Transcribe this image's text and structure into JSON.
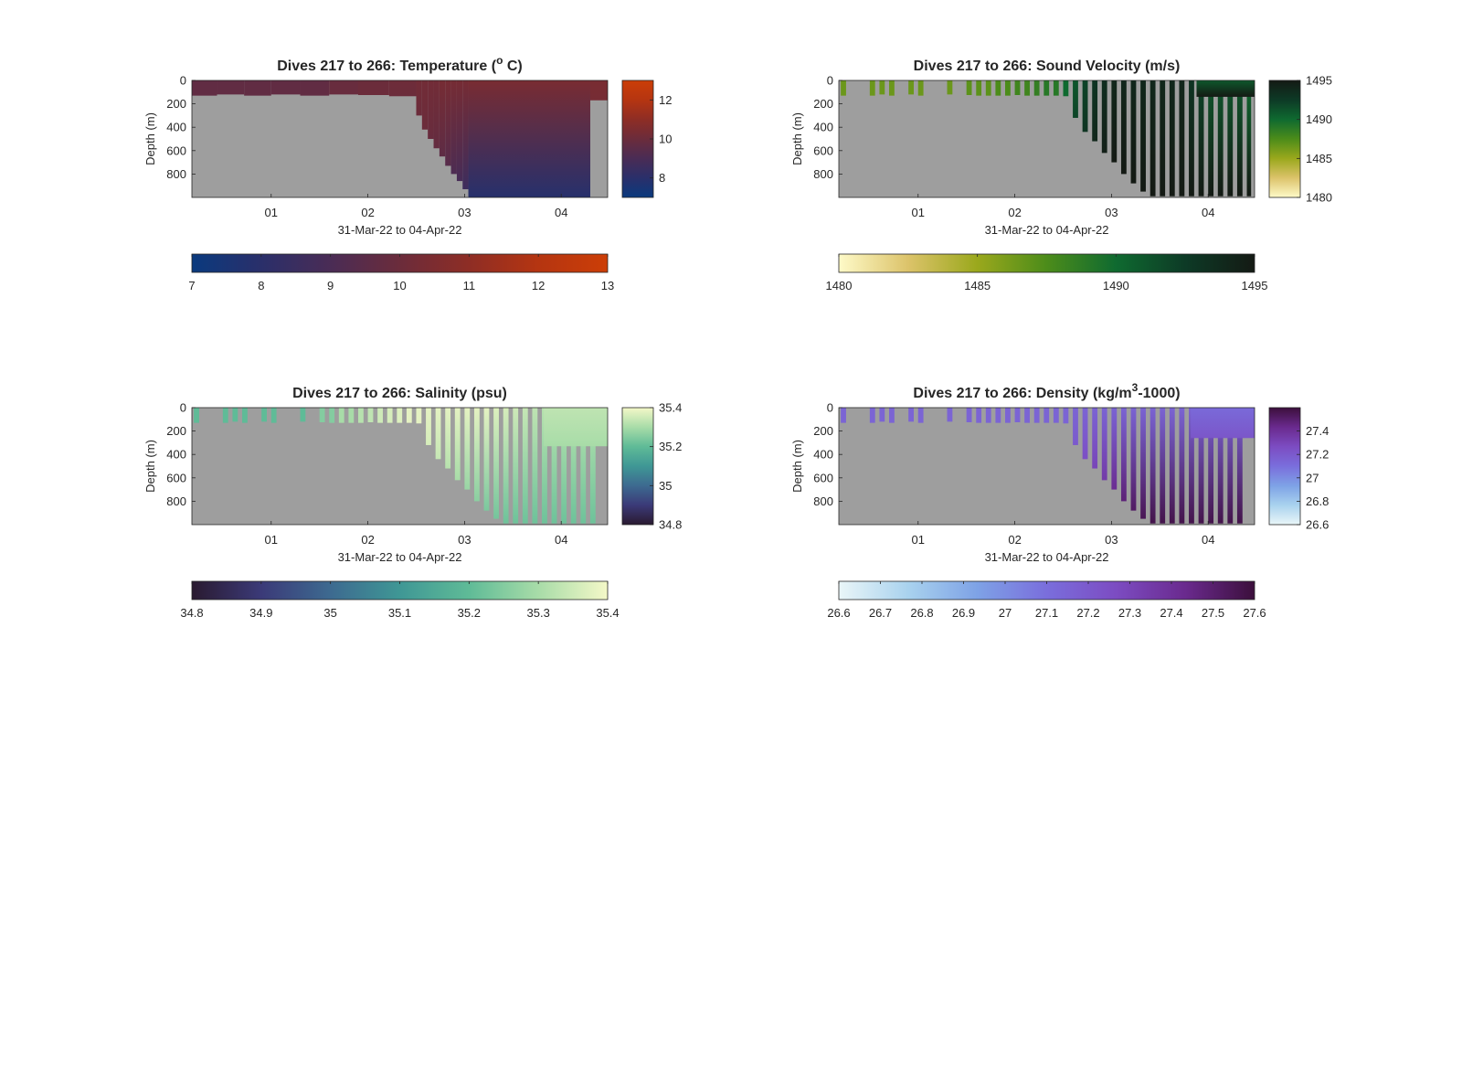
{
  "chart_data": [
    {
      "type": "heatmap",
      "title": "Dives 217 to 266: Temperature (",
      "title_sup": "o",
      "title_end": " C)",
      "xlabel": "31-Mar-22 to 04-Apr-22",
      "ylabel": "Depth (m)",
      "xticks": [
        "01",
        "02",
        "03",
        "04"
      ],
      "xtick_days": [
        1,
        2,
        3,
        4
      ],
      "xlim_days": [
        0.18,
        4.48
      ],
      "yticks": [
        "0",
        "200",
        "400",
        "600",
        "800"
      ],
      "ylim": [
        0,
        1000
      ],
      "ydir": "reverse",
      "bg_color": "#9e9e9e",
      "colormap": [
        "#0a3a7e",
        "#2a2f6a",
        "#4a2c55",
        "#6b2c3b",
        "#8e2d25",
        "#b53511",
        "#cc3e07"
      ],
      "clim": [
        7,
        13
      ],
      "cbar_right_ticks": [
        "8",
        "10",
        "12"
      ],
      "cbar_right_values": [
        8,
        10,
        12
      ],
      "cbar_bottom_ticks": [
        "7",
        "8",
        "9",
        "10",
        "11",
        "12",
        "13"
      ],
      "cbar_bottom_values": [
        7,
        8,
        9,
        10,
        11,
        12,
        13
      ],
      "dives": {
        "start_day": [
          0.18,
          0.44,
          0.72,
          1.0,
          1.3,
          1.6,
          1.9,
          2.22,
          2.5,
          2.56,
          2.62,
          2.68,
          2.74,
          2.8,
          2.86,
          2.92,
          2.98,
          3.04,
          4.3
        ],
        "max_depth": [
          130,
          120,
          130,
          120,
          130,
          120,
          125,
          135,
          300,
          420,
          500,
          580,
          650,
          730,
          800,
          860,
          930,
          990,
          170
        ],
        "surface_value": [
          9.7,
          9.7,
          9.7,
          9.7,
          9.7,
          9.9,
          10.0,
          10.1,
          10.2,
          10.2,
          10.2,
          10.2,
          10.3,
          10.3,
          10.3,
          10.3,
          10.3,
          10.3,
          10.4
        ],
        "deep_value": [
          9.7,
          9.7,
          9.7,
          9.7,
          9.7,
          9.9,
          10.0,
          10.0,
          10.0,
          10.0,
          9.9,
          9.8,
          9.6,
          9.4,
          9.1,
          8.9,
          8.6,
          8.3,
          10.3
        ]
      },
      "continuous_from_day": 3.04,
      "continuous_to_day": 4.3,
      "continuous_surface_value": 10.4,
      "continuous_deep_value": 7.9
    },
    {
      "type": "heatmap",
      "title": "Dives 217 to 266: Sound Velocity (m/s)",
      "title_sup": "",
      "title_end": "",
      "xlabel": "31-Mar-22 to 04-Apr-22",
      "ylabel": "Depth (m)",
      "xticks": [
        "01",
        "02",
        "03",
        "04"
      ],
      "xtick_days": [
        1,
        2,
        3,
        4
      ],
      "xlim_days": [
        0.18,
        4.48
      ],
      "yticks": [
        "0",
        "200",
        "400",
        "600",
        "800"
      ],
      "ylim": [
        0,
        1000
      ],
      "ydir": "reverse",
      "bg_color": "#9e9e9e",
      "colormap": [
        "#fefac8",
        "#dcc36a",
        "#9aa81c",
        "#4c8c1a",
        "#0f6a30",
        "#0d3a26",
        "#141a14"
      ],
      "clim": [
        1480,
        1495
      ],
      "cbar_right_ticks": [
        "1480",
        "1485",
        "1490",
        "1495"
      ],
      "cbar_right_values": [
        1480,
        1485,
        1490,
        1495
      ],
      "cbar_bottom_ticks": [
        "1480",
        "1485",
        "1490",
        "1495"
      ],
      "cbar_bottom_values": [
        1480,
        1485,
        1490,
        1495
      ],
      "dives": {
        "start_day": [
          0.2,
          0.3,
          0.4,
          0.5,
          0.6,
          0.7,
          0.8,
          0.9,
          1.0,
          1.1,
          1.2,
          1.3,
          1.4,
          1.5,
          1.6,
          1.7,
          1.8,
          1.9,
          2.0,
          2.1,
          2.2,
          2.3,
          2.4,
          2.5,
          2.6,
          2.7,
          2.8,
          2.9,
          3.0,
          3.1,
          3.2,
          3.3,
          3.4,
          3.5,
          3.6,
          3.7,
          3.8,
          3.9,
          4.0,
          4.1,
          4.2,
          4.3,
          4.4
        ],
        "max_depth": [
          130,
          0,
          0,
          130,
          120,
          130,
          0,
          120,
          130,
          0,
          0,
          120,
          0,
          125,
          130,
          130,
          130,
          130,
          125,
          130,
          130,
          130,
          130,
          135,
          320,
          440,
          520,
          620,
          700,
          800,
          880,
          950,
          990,
          990,
          990,
          990,
          990,
          990,
          990,
          990,
          990,
          990,
          990
        ],
        "surface_value": [
          1486.5,
          1486.5,
          1486.5,
          1486.5,
          1486.5,
          1486.5,
          1486.5,
          1486.5,
          1486.5,
          1486.5,
          1486.5,
          1486.5,
          1486.5,
          1487,
          1487,
          1487,
          1487.5,
          1487.5,
          1488,
          1488,
          1488.5,
          1489,
          1489,
          1490,
          1491,
          1492,
          1493,
          1493.5,
          1494,
          1494,
          1494,
          1494,
          1494,
          1494,
          1494,
          1494,
          1493,
          1492,
          1491,
          1491,
          1491,
          1491,
          1490
        ],
        "deep_value": [
          1486.5,
          1486.5,
          1486.5,
          1486.5,
          1486.5,
          1486.5,
          1486.5,
          1486.5,
          1486.5,
          1486.5,
          1486.5,
          1486.5,
          1486.5,
          1487,
          1487,
          1487,
          1487.5,
          1487.5,
          1488,
          1488,
          1488.5,
          1489,
          1489,
          1490,
          1492,
          1493,
          1494,
          1494.5,
          1495,
          1495,
          1495,
          1495,
          1495,
          1495,
          1495,
          1495,
          1495,
          1495,
          1495,
          1495,
          1495,
          1495,
          1495
        ]
      },
      "continuous_from_day": 3.88,
      "continuous_to_day": 4.48,
      "continuous_surface_value": 1491,
      "continuous_deep_value": 1495,
      "continuous_max_depth": 140
    },
    {
      "type": "heatmap",
      "title": "Dives 217 to 266: Salinity (psu)",
      "title_sup": "",
      "title_end": "",
      "xlabel": "31-Mar-22 to 04-Apr-22",
      "ylabel": "Depth (m)",
      "xticks": [
        "01",
        "02",
        "03",
        "04"
      ],
      "xtick_days": [
        1,
        2,
        3,
        4
      ],
      "xlim_days": [
        0.18,
        4.48
      ],
      "yticks": [
        "0",
        "200",
        "400",
        "600",
        "800"
      ],
      "ylim": [
        0,
        1000
      ],
      "ydir": "reverse",
      "bg_color": "#9e9e9e",
      "colormap": [
        "#2a1a30",
        "#3b3a78",
        "#3d6a90",
        "#3f9795",
        "#5fbb97",
        "#a8dca8",
        "#f4f8c8"
      ],
      "clim": [
        34.8,
        35.4
      ],
      "cbar_right_ticks": [
        "34.8",
        "35",
        "35.2",
        "35.4"
      ],
      "cbar_right_values": [
        34.8,
        35.0,
        35.2,
        35.4
      ],
      "cbar_bottom_ticks": [
        "34.8",
        "34.9",
        "35",
        "35.1",
        "35.2",
        "35.3",
        "35.4"
      ],
      "cbar_bottom_values": [
        34.8,
        34.9,
        35.0,
        35.1,
        35.2,
        35.3,
        35.4
      ],
      "dives": {
        "start_day": [
          0.2,
          0.3,
          0.4,
          0.5,
          0.6,
          0.7,
          0.8,
          0.9,
          1.0,
          1.1,
          1.2,
          1.3,
          1.4,
          1.5,
          1.6,
          1.7,
          1.8,
          1.9,
          2.0,
          2.1,
          2.2,
          2.3,
          2.4,
          2.5,
          2.6,
          2.7,
          2.8,
          2.9,
          3.0,
          3.1,
          3.2,
          3.3,
          3.4,
          3.5,
          3.6,
          3.7,
          3.8,
          3.9,
          4.0,
          4.1,
          4.2,
          4.3,
          4.4
        ],
        "max_depth": [
          130,
          0,
          0,
          130,
          120,
          130,
          0,
          120,
          130,
          0,
          0,
          120,
          0,
          125,
          130,
          130,
          130,
          130,
          125,
          130,
          130,
          130,
          130,
          135,
          320,
          440,
          520,
          620,
          700,
          800,
          880,
          950,
          990,
          990,
          990,
          990,
          990,
          990,
          990,
          990,
          990,
          990,
          140
        ],
        "surface_value": [
          35.2,
          35.2,
          35.2,
          35.2,
          35.2,
          35.2,
          35.2,
          35.2,
          35.2,
          35.2,
          35.2,
          35.2,
          35.2,
          35.25,
          35.25,
          35.3,
          35.3,
          35.32,
          35.33,
          35.35,
          35.36,
          35.37,
          35.38,
          35.38,
          35.38,
          35.38,
          35.38,
          35.38,
          35.38,
          35.38,
          35.38,
          35.37,
          35.36,
          35.35,
          35.34,
          35.33,
          35.32,
          35.32,
          35.32,
          35.32,
          35.32,
          35.32,
          35.32
        ],
        "deep_value": [
          35.2,
          35.2,
          35.2,
          35.2,
          35.2,
          35.2,
          35.2,
          35.2,
          35.2,
          35.2,
          35.2,
          35.2,
          35.2,
          35.25,
          35.25,
          35.3,
          35.3,
          35.32,
          35.33,
          35.35,
          35.36,
          35.37,
          35.38,
          35.38,
          35.36,
          35.34,
          35.32,
          35.3,
          35.28,
          35.26,
          35.24,
          35.23,
          35.22,
          35.22,
          35.22,
          35.22,
          35.22,
          35.22,
          35.22,
          35.22,
          35.22,
          35.22,
          35.3
        ]
      },
      "continuous_from_day": 3.82,
      "continuous_to_day": 4.48,
      "continuous_surface_value": 35.33,
      "continuous_deep_value": 35.3,
      "continuous_max_depth": 330
    },
    {
      "type": "heatmap",
      "title": "Dives 217 to 266: Density (kg/m",
      "title_sup": "3",
      "title_end": "-1000)",
      "xlabel": "31-Mar-22 to 04-Apr-22",
      "ylabel": "Depth (m)",
      "xticks": [
        "01",
        "02",
        "03",
        "04"
      ],
      "xtick_days": [
        1,
        2,
        3,
        4
      ],
      "xlim_days": [
        0.18,
        4.48
      ],
      "yticks": [
        "0",
        "200",
        "400",
        "600",
        "800"
      ],
      "ylim": [
        0,
        1000
      ],
      "ydir": "reverse",
      "bg_color": "#9e9e9e",
      "colormap": [
        "#eaf6f8",
        "#a9d2ee",
        "#7ea2e6",
        "#7a6edc",
        "#7c4cc2",
        "#6a2a8e",
        "#3c0f3c"
      ],
      "clim": [
        26.6,
        27.6
      ],
      "cbar_right_ticks": [
        "26.6",
        "26.8",
        "27",
        "27.2",
        "27.4"
      ],
      "cbar_right_values": [
        26.6,
        26.8,
        27.0,
        27.2,
        27.4
      ],
      "cbar_bottom_ticks": [
        "26.6",
        "26.7",
        "26.8",
        "26.9",
        "27",
        "27.1",
        "27.2",
        "27.3",
        "27.4",
        "27.5",
        "27.6"
      ],
      "cbar_bottom_values": [
        26.6,
        26.7,
        26.8,
        26.9,
        27.0,
        27.1,
        27.2,
        27.3,
        27.4,
        27.5,
        27.6
      ],
      "dives": {
        "start_day": [
          0.2,
          0.3,
          0.4,
          0.5,
          0.6,
          0.7,
          0.8,
          0.9,
          1.0,
          1.1,
          1.2,
          1.3,
          1.4,
          1.5,
          1.6,
          1.7,
          1.8,
          1.9,
          2.0,
          2.1,
          2.2,
          2.3,
          2.4,
          2.5,
          2.6,
          2.7,
          2.8,
          2.9,
          3.0,
          3.1,
          3.2,
          3.3,
          3.4,
          3.5,
          3.6,
          3.7,
          3.8,
          3.9,
          4.0,
          4.1,
          4.2,
          4.3,
          4.4
        ],
        "max_depth": [
          130,
          0,
          0,
          130,
          120,
          130,
          0,
          120,
          130,
          0,
          0,
          120,
          0,
          125,
          130,
          130,
          130,
          130,
          125,
          130,
          130,
          130,
          130,
          135,
          320,
          440,
          520,
          620,
          700,
          800,
          880,
          950,
          990,
          990,
          990,
          990,
          990,
          990,
          990,
          990,
          990,
          990,
          140
        ],
        "surface_value": [
          27.15,
          27.15,
          27.15,
          27.15,
          27.15,
          27.15,
          27.15,
          27.15,
          27.15,
          27.15,
          27.15,
          27.15,
          27.15,
          27.15,
          27.15,
          27.15,
          27.15,
          27.15,
          27.15,
          27.15,
          27.15,
          27.15,
          27.15,
          27.15,
          27.15,
          27.15,
          27.15,
          27.15,
          27.15,
          27.15,
          27.15,
          27.15,
          27.15,
          27.15,
          27.15,
          27.15,
          27.15,
          27.15,
          27.15,
          27.15,
          27.15,
          27.15,
          27.15
        ],
        "deep_value": [
          27.15,
          27.15,
          27.15,
          27.15,
          27.15,
          27.15,
          27.15,
          27.15,
          27.15,
          27.15,
          27.15,
          27.15,
          27.15,
          27.15,
          27.15,
          27.15,
          27.15,
          27.15,
          27.15,
          27.15,
          27.15,
          27.15,
          27.15,
          27.15,
          27.2,
          27.25,
          27.3,
          27.35,
          27.42,
          27.48,
          27.52,
          27.55,
          27.57,
          27.57,
          27.57,
          27.57,
          27.57,
          27.57,
          27.57,
          27.57,
          27.57,
          27.57,
          27.2
        ]
      },
      "continuous_from_day": 3.82,
      "continuous_to_day": 4.48,
      "continuous_surface_value": 27.12,
      "continuous_deep_value": 27.22,
      "continuous_max_depth": 260
    }
  ]
}
